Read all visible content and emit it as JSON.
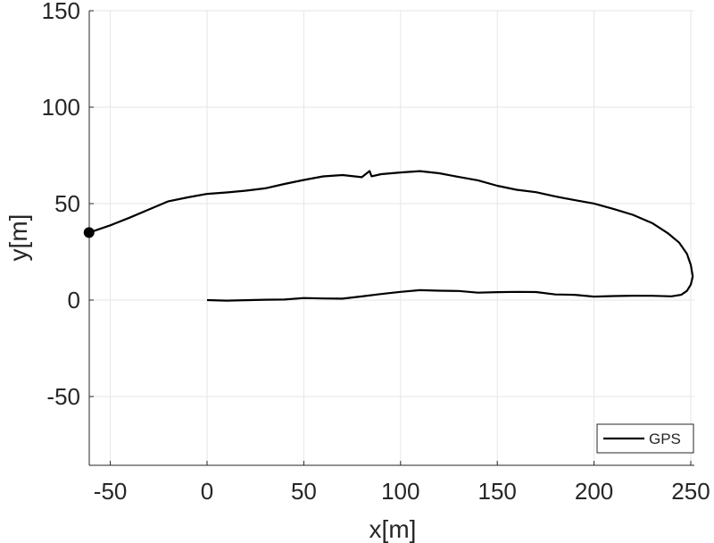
{
  "chart_data": {
    "type": "line",
    "title": "",
    "xlabel": "x[m]",
    "ylabel": "y[m]",
    "xlim": [
      -61,
      252
    ],
    "ylim": [
      -86,
      150
    ],
    "xticks": [
      -50,
      0,
      50,
      100,
      150,
      200,
      250
    ],
    "yticks": [
      -50,
      0,
      50,
      100,
      150
    ],
    "grid": true,
    "legend": {
      "position": "southeast",
      "entries": [
        "GPS"
      ]
    },
    "series": [
      {
        "name": "GPS",
        "color": "#000000",
        "start_marker": {
          "x": -61,
          "y": 35
        },
        "x": [
          -61,
          -50,
          -40,
          -30,
          -20,
          -10,
          0,
          10,
          20,
          30,
          40,
          50,
          60,
          70,
          80,
          84,
          85,
          90,
          100,
          110,
          120,
          130,
          140,
          150,
          160,
          170,
          180,
          190,
          200,
          210,
          220,
          230,
          238,
          244,
          248,
          250,
          251,
          250,
          248,
          245,
          240,
          230,
          220,
          210,
          200,
          190,
          180,
          170,
          160,
          150,
          140,
          130,
          120,
          110,
          100,
          90,
          80,
          70,
          60,
          50,
          40,
          30,
          20,
          10,
          0
        ],
        "y": [
          35,
          39,
          43,
          47,
          51,
          53,
          55,
          56,
          57,
          58,
          60,
          62,
          64,
          65,
          64,
          67,
          64,
          65,
          66,
          67,
          66,
          64,
          62,
          59,
          57,
          56,
          54,
          52,
          50,
          47,
          44,
          40,
          35,
          30,
          24,
          18,
          12,
          8,
          5,
          3,
          2,
          2,
          2,
          2,
          2,
          3,
          3,
          4,
          4,
          4,
          4,
          5,
          5,
          5,
          4,
          3,
          2,
          1,
          1,
          1,
          0,
          0,
          0,
          0,
          0
        ]
      }
    ]
  },
  "axes": {
    "xlabel": "x[m]",
    "ylabel": "y[m]",
    "xtick_labels": [
      "-50",
      "0",
      "50",
      "100",
      "150",
      "200",
      "250"
    ],
    "ytick_labels": [
      "-50",
      "0",
      "50",
      "100",
      "150"
    ]
  },
  "legend": {
    "label": "GPS"
  }
}
